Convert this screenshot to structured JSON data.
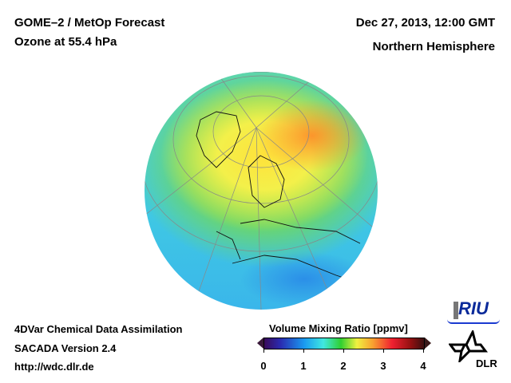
{
  "header": {
    "title_line1": "GOME–2 / MetOp Forecast",
    "title_line2": "Ozone at 55.4 hPa",
    "date": "Dec 27, 2013, 12:00 GMT",
    "region": "Northern Hemisphere"
  },
  "footer": {
    "line1": "4DVar Chemical Data Assimilation",
    "line2": "SACADA Version 2.4",
    "line3": "http://wdc.dlr.de"
  },
  "colorbar": {
    "title": "Volume Mixing Ratio [ppmv]",
    "ticks": [
      "0",
      "1",
      "2",
      "3",
      "4"
    ],
    "min": 0,
    "max": 4,
    "colors": [
      "#3a0a5a",
      "#2a2ab0",
      "#1a9af0",
      "#40e8e0",
      "#30d030",
      "#f0f040",
      "#f8a030",
      "#f02030",
      "#901010"
    ]
  },
  "logos": {
    "riu": "RIU",
    "dlr": "DLR"
  }
}
